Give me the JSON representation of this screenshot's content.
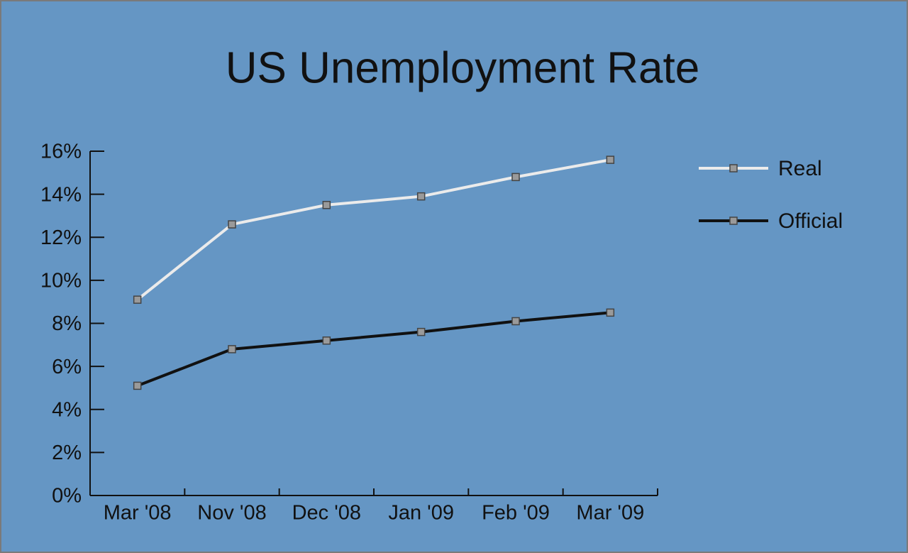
{
  "chart_data": {
    "type": "line",
    "title": "US Unemployment Rate",
    "categories": [
      "Mar '08",
      "Nov '08",
      "Dec '08",
      "Jan '09",
      "Feb '09",
      "Mar '09"
    ],
    "series": [
      {
        "name": "Real",
        "color": "#ebebeb",
        "values": [
          9.1,
          12.6,
          13.5,
          13.9,
          14.8,
          15.6
        ]
      },
      {
        "name": "Official",
        "color": "#111111",
        "values": [
          5.1,
          6.8,
          7.2,
          7.6,
          8.1,
          8.5
        ]
      }
    ],
    "ylim": [
      0,
      16
    ],
    "yticks": [
      {
        "value": 0,
        "label": "0%"
      },
      {
        "value": 2,
        "label": "2%"
      },
      {
        "value": 4,
        "label": "4%"
      },
      {
        "value": 6,
        "label": "6%"
      },
      {
        "value": 8,
        "label": "8%"
      },
      {
        "value": 10,
        "label": "10%"
      },
      {
        "value": 12,
        "label": "12%"
      },
      {
        "value": 14,
        "label": "14%"
      },
      {
        "value": 16,
        "label": "16%"
      }
    ],
    "legend": "upper right",
    "grid": false
  }
}
